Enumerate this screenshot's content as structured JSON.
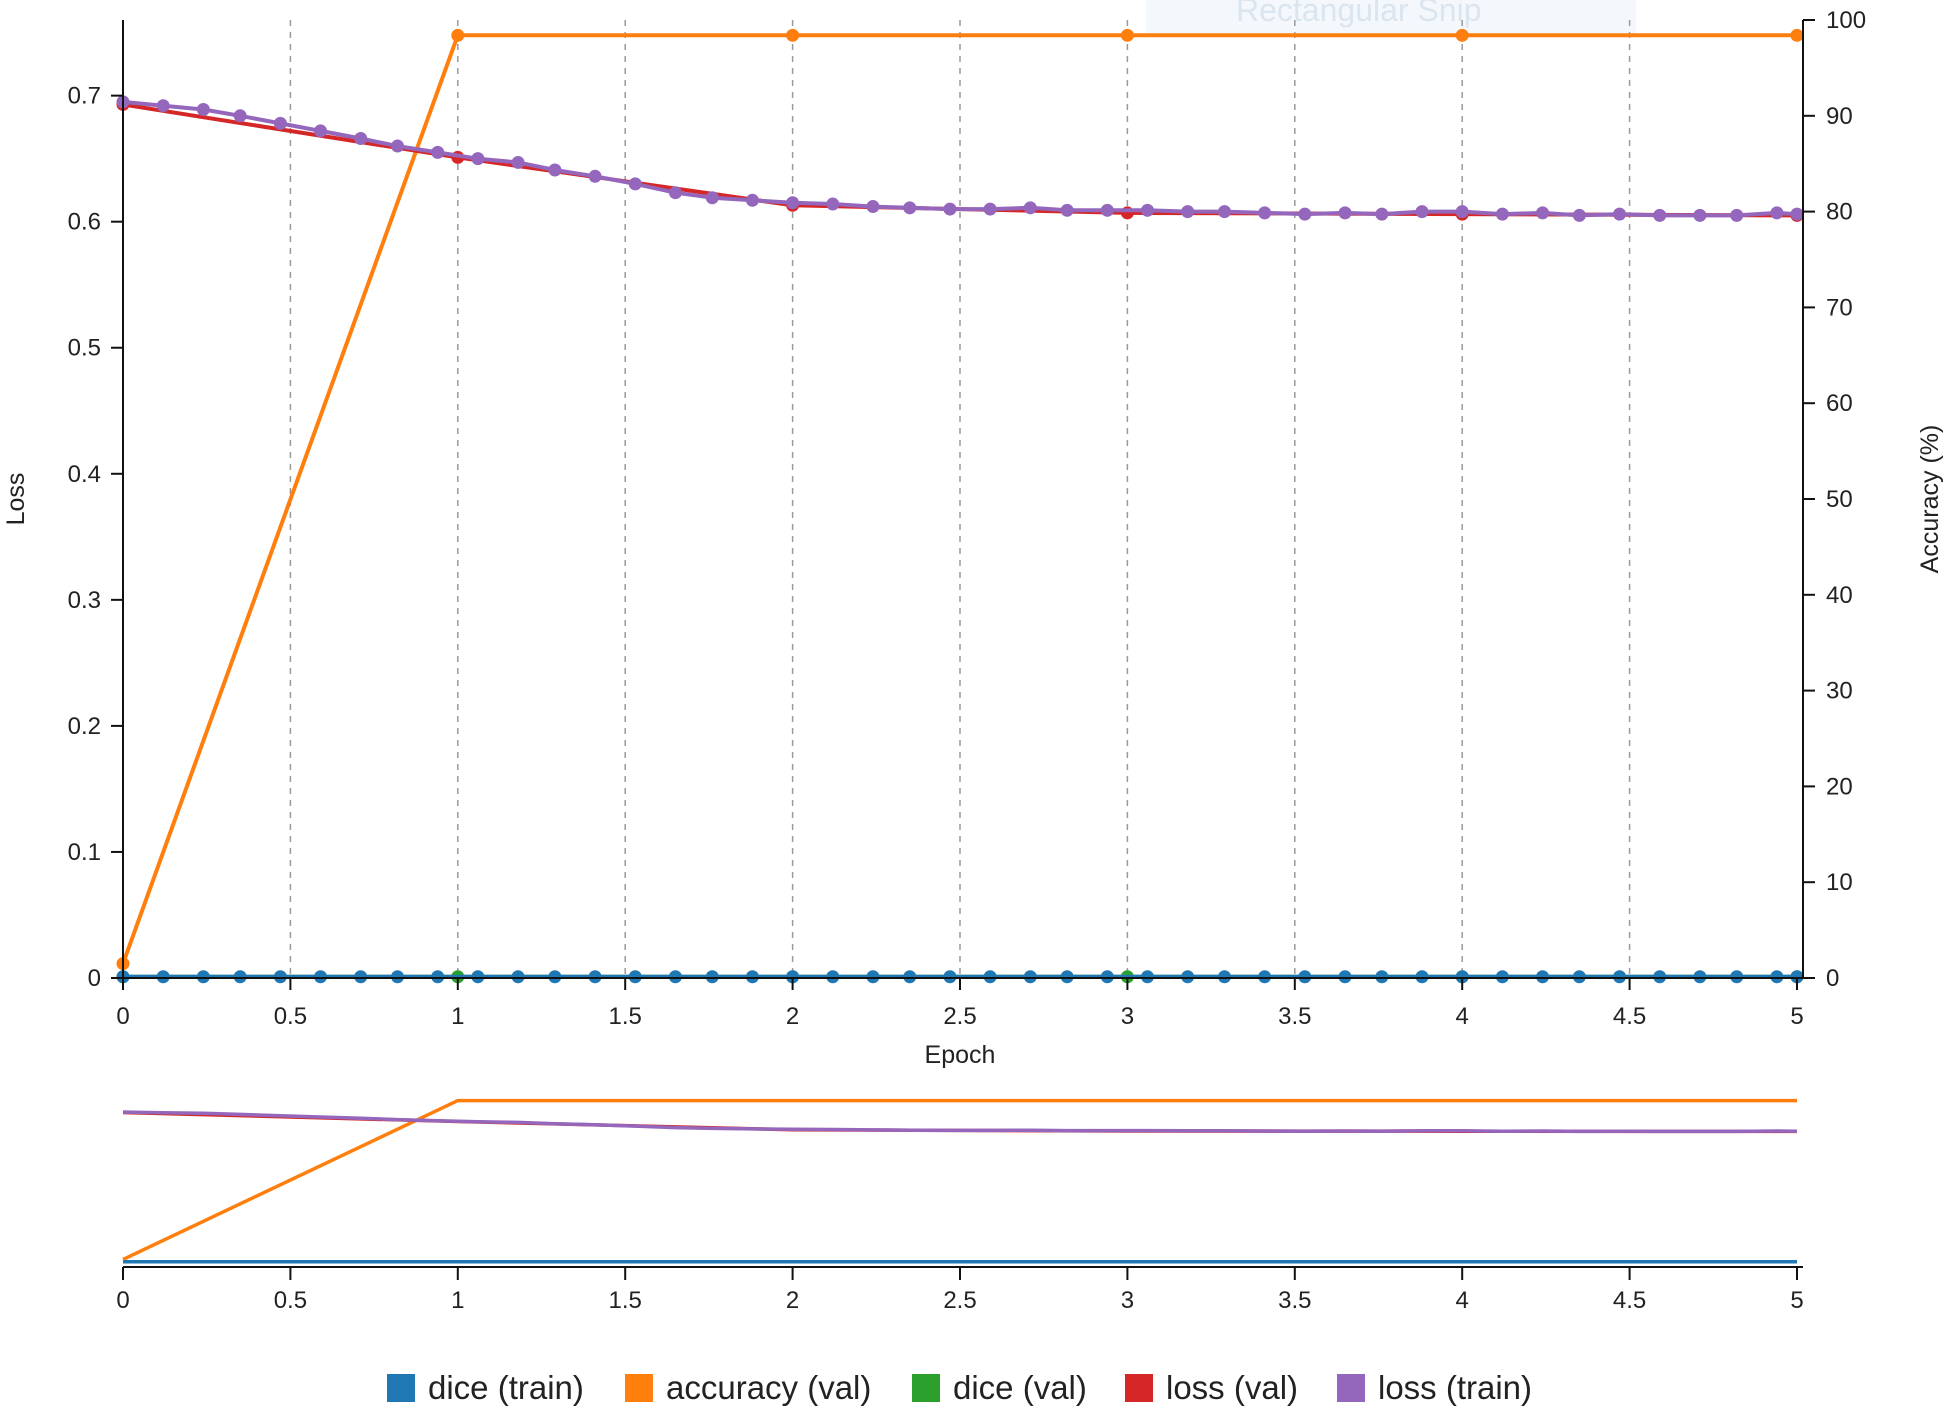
{
  "overlay_text": "Rectangular Snip",
  "chart_data": {
    "type": "line",
    "xlabel": "Epoch",
    "ylabel_left": "Loss",
    "ylabel_right": "Accuracy (%)",
    "xlim": [
      0,
      5
    ],
    "ylim_left": [
      0,
      0.76
    ],
    "ylim_right": [
      0,
      100
    ],
    "x_ticks": [
      "0",
      "0.5",
      "1",
      "1.5",
      "2",
      "2.5",
      "3",
      "3.5",
      "4",
      "4.5",
      "5"
    ],
    "y_left_ticks": [
      "0",
      "0.1",
      "0.2",
      "0.3",
      "0.4",
      "0.5",
      "0.6",
      "0.7"
    ],
    "y_right_ticks": [
      "0",
      "10",
      "20",
      "30",
      "40",
      "50",
      "60",
      "70",
      "80",
      "90",
      "100"
    ],
    "grid": "vertical dashed at x ticks",
    "legend_position": "bottom",
    "series": [
      {
        "name": "dice (train)",
        "color": "#1f77b4",
        "axis": "left",
        "markers": true,
        "x": [
          0,
          0.12,
          0.24,
          0.35,
          0.47,
          0.59,
          0.71,
          0.82,
          0.94,
          1.06,
          1.18,
          1.29,
          1.41,
          1.53,
          1.65,
          1.76,
          1.88,
          2.0,
          2.12,
          2.24,
          2.35,
          2.47,
          2.59,
          2.71,
          2.82,
          2.94,
          3.06,
          3.18,
          3.29,
          3.41,
          3.53,
          3.65,
          3.76,
          3.88,
          4.0,
          4.12,
          4.24,
          4.35,
          4.47,
          4.59,
          4.71,
          4.82,
          4.94,
          5.0
        ],
        "y": [
          0.001,
          0.001,
          0.001,
          0.001,
          0.001,
          0.001,
          0.001,
          0.001,
          0.001,
          0.001,
          0.001,
          0.001,
          0.001,
          0.001,
          0.001,
          0.001,
          0.001,
          0.001,
          0.001,
          0.001,
          0.001,
          0.001,
          0.001,
          0.001,
          0.001,
          0.001,
          0.001,
          0.001,
          0.001,
          0.001,
          0.001,
          0.001,
          0.001,
          0.001,
          0.001,
          0.001,
          0.001,
          0.001,
          0.001,
          0.001,
          0.001,
          0.001,
          0.001,
          0.001
        ]
      },
      {
        "name": "accuracy (val)",
        "color": "#ff7f0e",
        "axis": "right",
        "markers": true,
        "x": [
          0,
          1,
          2,
          3,
          4,
          5
        ],
        "y": [
          1.5,
          98.4,
          98.4,
          98.4,
          98.4,
          98.4
        ]
      },
      {
        "name": "dice (val)",
        "color": "#2ca02c",
        "axis": "left",
        "markers": true,
        "x": [
          0,
          1,
          2,
          3,
          4,
          5
        ],
        "y": [
          0.001,
          0.001,
          0.001,
          0.001,
          0.001,
          0.001
        ]
      },
      {
        "name": "loss (val)",
        "color": "#d62728",
        "axis": "left",
        "markers": true,
        "x": [
          0,
          1,
          2,
          3,
          4,
          5
        ],
        "y": [
          0.693,
          0.651,
          0.613,
          0.607,
          0.606,
          0.605
        ]
      },
      {
        "name": "loss (train)",
        "color": "#9467bd",
        "axis": "left",
        "markers": true,
        "x": [
          0,
          0.12,
          0.24,
          0.35,
          0.47,
          0.59,
          0.71,
          0.82,
          0.94,
          1.06,
          1.18,
          1.29,
          1.41,
          1.53,
          1.65,
          1.76,
          1.88,
          2.0,
          2.12,
          2.24,
          2.35,
          2.47,
          2.59,
          2.71,
          2.82,
          2.94,
          3.06,
          3.18,
          3.29,
          3.41,
          3.53,
          3.65,
          3.76,
          3.88,
          4.0,
          4.12,
          4.24,
          4.35,
          4.47,
          4.59,
          4.71,
          4.82,
          4.94,
          5.0
        ],
        "y": [
          0.695,
          0.692,
          0.689,
          0.684,
          0.678,
          0.672,
          0.666,
          0.66,
          0.655,
          0.65,
          0.647,
          0.641,
          0.636,
          0.63,
          0.623,
          0.619,
          0.617,
          0.615,
          0.614,
          0.612,
          0.611,
          0.61,
          0.61,
          0.611,
          0.609,
          0.609,
          0.609,
          0.608,
          0.608,
          0.607,
          0.606,
          0.607,
          0.606,
          0.608,
          0.608,
          0.606,
          0.607,
          0.605,
          0.606,
          0.605,
          0.605,
          0.605,
          0.607,
          0.606
        ]
      }
    ]
  }
}
